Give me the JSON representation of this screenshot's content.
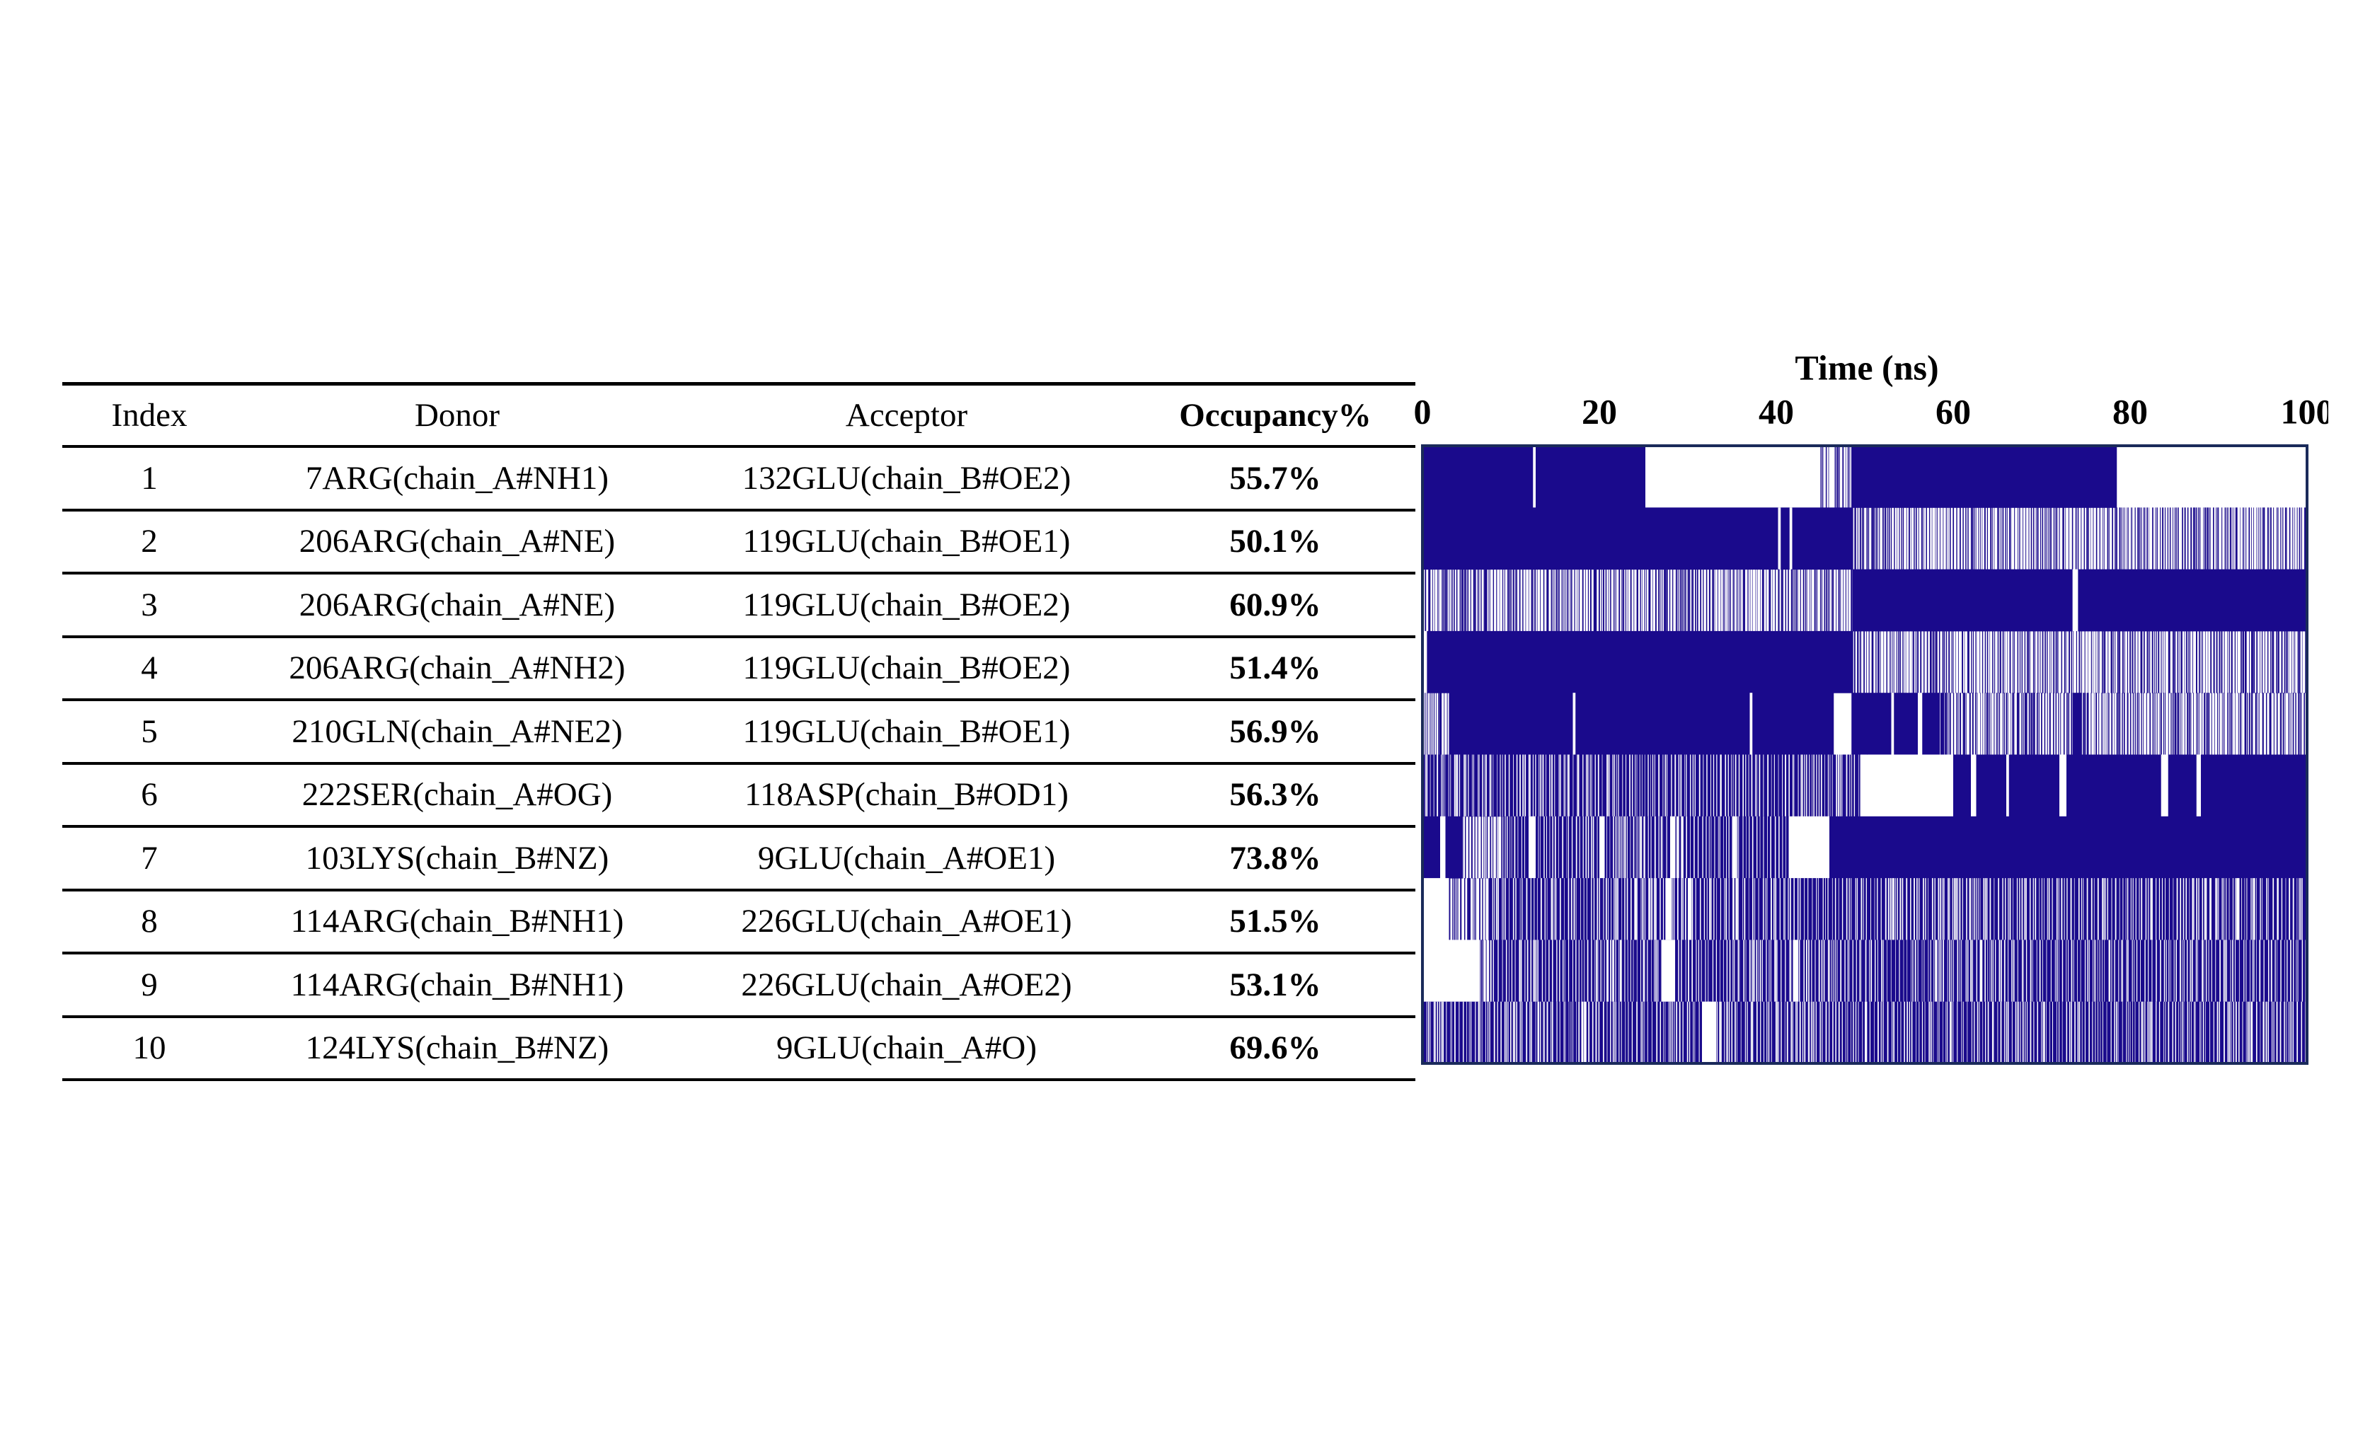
{
  "table": {
    "headers": {
      "index": "Index",
      "donor": "Donor",
      "acceptor": "Acceptor",
      "occupancy": "Occupancy%"
    },
    "rows": [
      {
        "index": "1",
        "donor": "7ARG(chain_A#NH1)",
        "acceptor": "132GLU(chain_B#OE2)",
        "occupancy": "55.7%"
      },
      {
        "index": "2",
        "donor": "206ARG(chain_A#NE)",
        "acceptor": "119GLU(chain_B#OE1)",
        "occupancy": "50.1%"
      },
      {
        "index": "3",
        "donor": "206ARG(chain_A#NE)",
        "acceptor": "119GLU(chain_B#OE2)",
        "occupancy": "60.9%"
      },
      {
        "index": "4",
        "donor": "206ARG(chain_A#NH2)",
        "acceptor": "119GLU(chain_B#OE2)",
        "occupancy": "51.4%"
      },
      {
        "index": "5",
        "donor": "210GLN(chain_A#NE2)",
        "acceptor": "119GLU(chain_B#OE1)",
        "occupancy": "56.9%"
      },
      {
        "index": "6",
        "donor": "222SER(chain_A#OG)",
        "acceptor": "118ASP(chain_B#OD1)",
        "occupancy": "56.3%"
      },
      {
        "index": "7",
        "donor": "103LYS(chain_B#NZ)",
        "acceptor": "9GLU(chain_A#OE1)",
        "occupancy": "73.8%"
      },
      {
        "index": "8",
        "donor": "114ARG(chain_B#NH1)",
        "acceptor": "226GLU(chain_A#OE1)",
        "occupancy": "51.5%"
      },
      {
        "index": "9",
        "donor": "114ARG(chain_B#NH1)",
        "acceptor": "226GLU(chain_A#OE2)",
        "occupancy": "53.1%"
      },
      {
        "index": "10",
        "donor": "124LYS(chain_B#NZ)",
        "acceptor": "9GLU(chain_A#O)",
        "occupancy": "69.6%"
      }
    ]
  },
  "chart_data": {
    "type": "heatmap",
    "xlabel": "Time (ns)",
    "xlim": [
      0,
      100
    ],
    "xticks": [
      "0",
      "20",
      "40",
      "60",
      "80",
      "100"
    ],
    "colors": {
      "present": "#1a0a8c",
      "absent": "#ffffff",
      "border": "#1a2a5a"
    },
    "rows": [
      {
        "solid": [
          [
            0,
            25.2
          ],
          [
            48.6,
            78.5
          ]
        ],
        "dense": [],
        "sparse": [
          [
            45,
            48.6
          ]
        ],
        "gaps": [
          [
            12.5,
            12.8
          ],
          [
            46,
            46.4
          ]
        ]
      },
      {
        "solid": [
          [
            0,
            48.6
          ]
        ],
        "dense": [],
        "sparse": [
          [
            48.6,
            100
          ]
        ],
        "gaps": [
          [
            40.2,
            40.5
          ],
          [
            41.5,
            41.8
          ]
        ]
      },
      {
        "solid": [
          [
            48.6,
            73.5
          ],
          [
            74.1,
            100
          ]
        ],
        "dense": [],
        "sparse": [
          [
            0,
            48.6
          ]
        ],
        "gaps": [
          [
            73.5,
            74.1
          ]
        ]
      },
      {
        "solid": [
          [
            0.5,
            48.6
          ]
        ],
        "dense": [],
        "sparse": [
          [
            48.6,
            100
          ]
        ],
        "gaps": [
          [
            0,
            0.5
          ]
        ]
      },
      {
        "solid": [
          [
            3,
            46.5
          ],
          [
            48.5,
            58.5
          ],
          [
            73.5,
            74.5
          ]
        ],
        "dense": [
          [
            58.5,
            59.5
          ]
        ],
        "sparse": [
          [
            0,
            3
          ],
          [
            59.5,
            73.5
          ],
          [
            74.5,
            100
          ]
        ],
        "gaps": [
          [
            17,
            17.3
          ],
          [
            37,
            37.3
          ],
          [
            53,
            53.3
          ],
          [
            56,
            56.5
          ]
        ]
      },
      {
        "solid": [
          [
            60,
            100
          ]
        ],
        "dense": [
          [
            0,
            49.5
          ]
        ],
        "sparse": [],
        "gaps": [
          [
            49.5,
            50.3
          ],
          [
            50.3,
            60
          ],
          [
            62,
            62.6
          ],
          [
            66,
            66.3
          ],
          [
            72,
            72.8
          ],
          [
            83.5,
            84.3
          ],
          [
            87.5,
            88
          ]
        ]
      },
      {
        "solid": [
          [
            0,
            2
          ],
          [
            2.6,
            4.5
          ],
          [
            46,
            100
          ]
        ],
        "dense": [
          [
            9.5,
            41.5
          ]
        ],
        "sparse": [
          [
            4.5,
            9.5
          ]
        ],
        "gaps": [
          [
            2,
            2.6
          ],
          [
            41.5,
            46
          ],
          [
            12,
            12.8
          ],
          [
            20,
            20.6
          ],
          [
            28,
            28.6
          ],
          [
            35,
            35.5
          ]
        ]
      },
      {
        "solid": [],
        "dense": [
          [
            7.5,
            100
          ]
        ],
        "sparse": [
          [
            3,
            7.5
          ]
        ],
        "gaps": [
          [
            0,
            3
          ],
          [
            27.5,
            28.2
          ],
          [
            30,
            30.4
          ],
          [
            92,
            92.3
          ]
        ]
      },
      {
        "solid": [],
        "dense": [
          [
            8,
            100
          ]
        ],
        "sparse": [
          [
            6.5,
            8
          ]
        ],
        "gaps": [
          [
            0,
            6.5
          ],
          [
            27,
            28.5
          ],
          [
            42,
            42.5
          ],
          [
            63,
            63.3
          ]
        ]
      },
      {
        "solid": [],
        "dense": [
          [
            0,
            100
          ]
        ],
        "sparse": [],
        "gaps": [
          [
            31.6,
            33.2
          ],
          [
            13,
            13.2
          ],
          [
            18,
            18.2
          ],
          [
            50,
            50.2
          ]
        ]
      }
    ]
  }
}
